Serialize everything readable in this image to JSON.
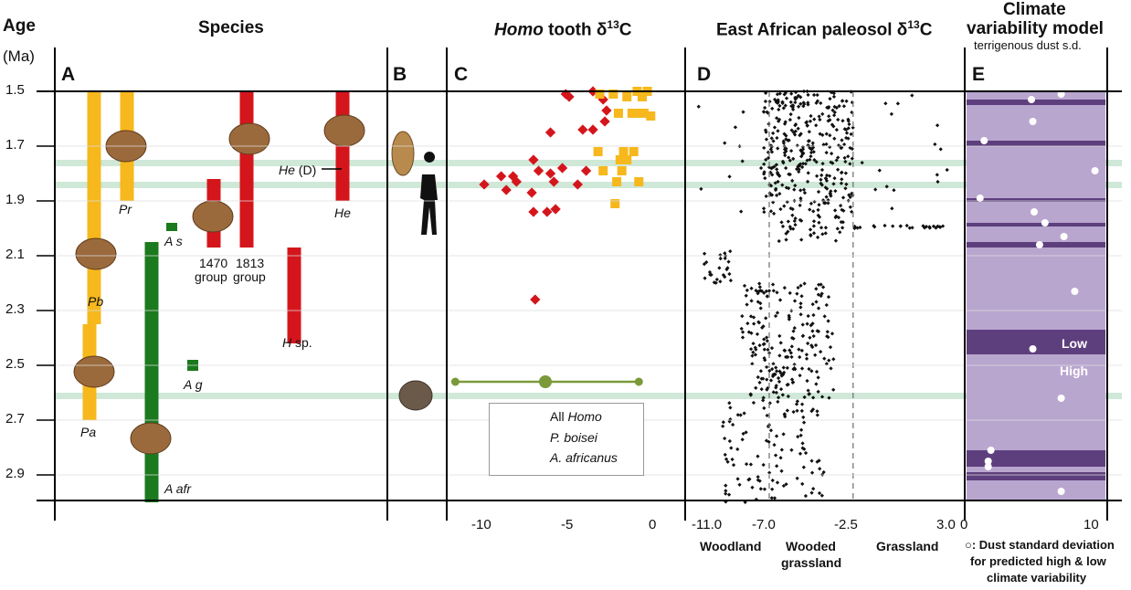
{
  "headers": {
    "age": "Age",
    "age_unit": "(Ma)",
    "species": "Species",
    "homo_pre": "Homo",
    "homo_post": " tooth δ",
    "homo_sup": "13",
    "homo_end": "C",
    "paleosol_pre": "East African paleosol δ",
    "paleosol_sup": "13",
    "paleosol_end": "C",
    "climate_line1": "Climate",
    "climate_line2": "variability model",
    "climate_sub": "terrigenous dust s.d."
  },
  "panels": [
    "A",
    "B",
    "C",
    "D",
    "E"
  ],
  "age_ticks": [
    "1.5",
    "1.7",
    "1.9",
    "2.1",
    "2.3",
    "2.5",
    "2.7",
    "2.9"
  ],
  "species_labels": {
    "pr": "Pr",
    "pb": "Pb",
    "pa": "Pa",
    "as": "A s",
    "ag": "A g",
    "aafr": "A afr",
    "he": "He",
    "he_d_pre": "He",
    "he_d_post": " (D)",
    "hsp_pre": "H",
    "hsp_post": " sp.",
    "g1470": "1470",
    "g1813": "1813",
    "group1": "group",
    "group2": "group"
  },
  "species_colors": {
    "paranthropus": "#f6b81d",
    "homo": "#e01b22",
    "australopithecus": "#1b7a1e"
  },
  "panel_c_ticks": [
    "-10",
    "-5",
    "0"
  ],
  "panel_d_ticks": [
    "-11.0",
    "-7.0",
    "-2.5",
    "3.0"
  ],
  "panel_d_zones": [
    "Woodland",
    "Wooded",
    "grassland",
    "Grassland"
  ],
  "panel_e_ticks": [
    "0",
    "10"
  ],
  "panel_e_labels": {
    "low": "Low",
    "high": "High"
  },
  "panel_e_note": [
    "○: Dust standard deviation",
    "for predicted high & low",
    "climate variability"
  ],
  "legend": {
    "all_homo_pre": "All ",
    "all_homo_it": "Homo",
    "p_boisei": "P. boisei",
    "a_africanus": "A. africanus"
  },
  "colors": {
    "homo_marker": "#d4161c",
    "boisei_marker": "#f6b81d",
    "africanus": "#7a9a3a",
    "climate_bg": "#b9a6cf",
    "climate_band": "#5e3f7d",
    "highlight": "#cfe8d7"
  },
  "chart_data": [
    {
      "type": "bar",
      "title": "Species",
      "ylabel": "Age (Ma)",
      "ylim": [
        1.5,
        3.0
      ],
      "series": [
        {
          "name": "Pr",
          "range": [
            1.5,
            1.9
          ]
        },
        {
          "name": "Pb",
          "range": [
            1.5,
            2.35
          ]
        },
        {
          "name": "Pa",
          "range": [
            2.35,
            2.7
          ]
        },
        {
          "name": "A s",
          "range": [
            1.98,
            2.01
          ]
        },
        {
          "name": "A g",
          "range": [
            2.48,
            2.52
          ]
        },
        {
          "name": "A afr",
          "range": [
            2.05,
            3.0
          ]
        },
        {
          "name": "1470 group",
          "range": [
            1.82,
            2.07
          ]
        },
        {
          "name": "1813 group",
          "range": [
            1.5,
            2.07
          ]
        },
        {
          "name": "H sp.",
          "range": [
            2.07,
            2.42
          ]
        },
        {
          "name": "He",
          "range": [
            1.5,
            1.9
          ]
        }
      ]
    },
    {
      "type": "scatter",
      "title": "Homo tooth δ13C",
      "xlim": [
        -12,
        1
      ],
      "ylim": [
        1.5,
        3.0
      ],
      "series": [
        {
          "name": "All Homo",
          "points": [
            [
              -5.2,
              1.51
            ],
            [
              -5.0,
              1.52
            ],
            [
              -3.6,
              1.5
            ],
            [
              -3.0,
              1.53
            ],
            [
              -2.8,
              1.57
            ],
            [
              -2.9,
              1.61
            ],
            [
              -4.2,
              1.64
            ],
            [
              -3.6,
              1.64
            ],
            [
              -6.1,
              1.65
            ],
            [
              -7.1,
              1.75
            ],
            [
              -5.4,
              1.78
            ],
            [
              -4.0,
              1.79
            ],
            [
              -6.8,
              1.79
            ],
            [
              -9.0,
              1.81
            ],
            [
              -8.3,
              1.81
            ],
            [
              -8.1,
              1.83
            ],
            [
              -6.1,
              1.8
            ],
            [
              -5.9,
              1.83
            ],
            [
              -10.0,
              1.84
            ],
            [
              -4.5,
              1.84
            ],
            [
              -8.7,
              1.86
            ],
            [
              -7.2,
              1.87
            ],
            [
              -5.8,
              1.93
            ],
            [
              -7.1,
              1.94
            ],
            [
              -6.3,
              1.94
            ],
            [
              -7.0,
              2.26
            ]
          ]
        },
        {
          "name": "P. boisei",
          "points": [
            [
              -3.2,
              1.51
            ],
            [
              -2.4,
              1.51
            ],
            [
              -1.6,
              1.52
            ],
            [
              -1.0,
              1.5
            ],
            [
              -0.4,
              1.5
            ],
            [
              -0.7,
              1.52
            ],
            [
              -2.1,
              1.58
            ],
            [
              -1.3,
              1.58
            ],
            [
              -1.0,
              1.58
            ],
            [
              -0.6,
              1.58
            ],
            [
              -0.2,
              1.59
            ],
            [
              -3.3,
              1.72
            ],
            [
              -1.8,
              1.72
            ],
            [
              -1.2,
              1.72
            ],
            [
              -2.0,
              1.75
            ],
            [
              -1.6,
              1.75
            ],
            [
              -3.0,
              1.79
            ],
            [
              -1.9,
              1.79
            ],
            [
              -2.2,
              1.83
            ],
            [
              -0.9,
              1.83
            ],
            [
              -2.3,
              1.91
            ]
          ]
        },
        {
          "name": "A. africanus",
          "mean": -6.4,
          "range": [
            -11.7,
            -0.9
          ],
          "age": 2.56
        }
      ]
    },
    {
      "type": "scatter",
      "title": "East African paleosol δ13C",
      "xlim": [
        -11.0,
        3.0
      ],
      "reference_lines": [
        -7.0,
        -2.5
      ],
      "zones": [
        "Woodland",
        "Wooded grassland",
        "Grassland"
      ]
    },
    {
      "type": "bar",
      "title": "Climate variability model",
      "xlabel": "terrigenous dust s.d.",
      "xlim": [
        0,
        10
      ],
      "low_variability_bands": [
        [
          1.53,
          1.55
        ],
        [
          1.68,
          1.7
        ],
        [
          1.89,
          1.9
        ],
        [
          1.98,
          1.99
        ],
        [
          2.05,
          2.07
        ],
        [
          2.37,
          2.46
        ],
        [
          2.81,
          2.87
        ],
        [
          2.89,
          2.92
        ]
      ],
      "dust_sd_points": [
        [
          4.8,
          1.53
        ],
        [
          7.0,
          1.51
        ],
        [
          4.9,
          1.61
        ],
        [
          1.3,
          1.68
        ],
        [
          9.5,
          1.79
        ],
        [
          1.0,
          1.89
        ],
        [
          5.0,
          1.94
        ],
        [
          5.8,
          1.98
        ],
        [
          7.2,
          2.03
        ],
        [
          5.4,
          2.06
        ],
        [
          8.0,
          2.23
        ],
        [
          4.9,
          2.44
        ],
        [
          7.0,
          2.62
        ],
        [
          1.8,
          2.81
        ],
        [
          1.6,
          2.85
        ],
        [
          1.6,
          2.87
        ],
        [
          7.0,
          2.96
        ]
      ]
    }
  ]
}
